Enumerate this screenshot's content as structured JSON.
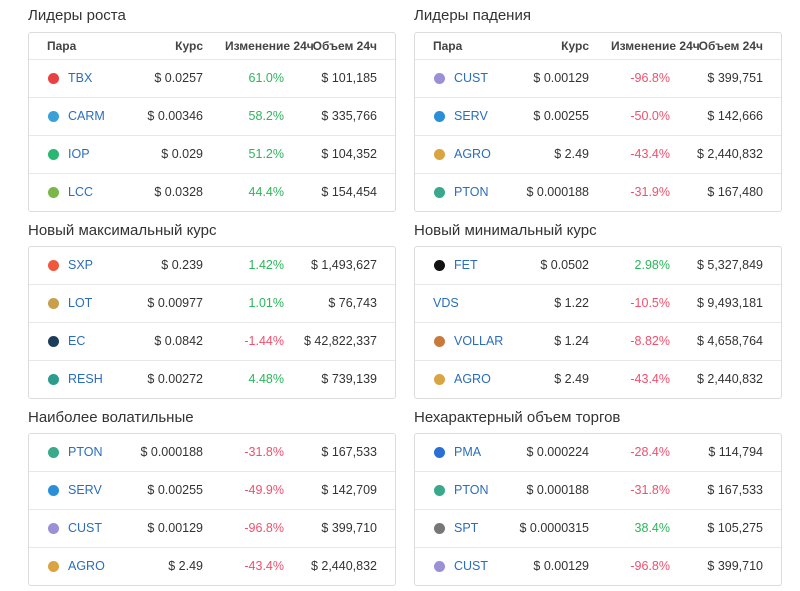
{
  "panels": [
    {
      "title": "Лидеры роста",
      "header": [
        "Пара",
        "Курс",
        "Изменение 24ч",
        "Объем 24ч"
      ],
      "rows": [
        [
          "TBX",
          "$ 0.0257",
          "61.0%",
          "$ 101,185"
        ],
        [
          "CARM",
          "$ 0.00346",
          "58.2%",
          "$ 335,766"
        ],
        [
          "IOP",
          "$ 0.029",
          "51.2%",
          "$ 104,352"
        ],
        [
          "LCC",
          "$ 0.0328",
          "44.4%",
          "$ 154,454"
        ]
      ]
    },
    {
      "title": "Лидеры падения",
      "header": [
        "Пара",
        "Курс",
        "Изменение 24ч",
        "Объем 24ч"
      ],
      "rows": [
        [
          "CUST",
          "$ 0.00129",
          "-96.8%",
          "$ 399,751"
        ],
        [
          "SERV",
          "$ 0.00255",
          "-50.0%",
          "$ 142,666"
        ],
        [
          "AGRO",
          "$ 2.49",
          "-43.4%",
          "$ 2,440,832"
        ],
        [
          "PTON",
          "$ 0.000188",
          "-31.9%",
          "$ 167,480"
        ]
      ]
    },
    {
      "title": "Новый максимальный курс",
      "rows": [
        [
          "SXP",
          "$ 0.239",
          "1.42%",
          "$ 1,493,627"
        ],
        [
          "LOT",
          "$ 0.00977",
          "1.01%",
          "$ 76,743"
        ],
        [
          "EC",
          "$ 0.0842",
          "-1.44%",
          "$ 42,822,337"
        ],
        [
          "RESH",
          "$ 0.00272",
          "4.48%",
          "$ 739,139"
        ]
      ]
    },
    {
      "title": "Новый минимальный курс",
      "rows": [
        [
          "FET",
          "$ 0.0502",
          "2.98%",
          "$ 5,327,849"
        ],
        [
          "VDS",
          "$ 1.22",
          "-10.5%",
          "$ 9,493,181"
        ],
        [
          "VOLLAR",
          "$ 1.24",
          "-8.82%",
          "$ 4,658,764"
        ],
        [
          "AGRO",
          "$ 2.49",
          "-43.4%",
          "$ 2,440,832"
        ]
      ]
    },
    {
      "title": "Наиболее волатильные",
      "rows": [
        [
          "PTON",
          "$ 0.000188",
          "-31.8%",
          "$ 167,533"
        ],
        [
          "SERV",
          "$ 0.00255",
          "-49.9%",
          "$ 142,709"
        ],
        [
          "CUST",
          "$ 0.00129",
          "-96.8%",
          "$ 399,710"
        ],
        [
          "AGRO",
          "$ 2.49",
          "-43.4%",
          "$ 2,440,832"
        ]
      ]
    },
    {
      "title": "Нехарактерный объем торгов",
      "rows": [
        [
          "PMA",
          "$ 0.000224",
          "-28.4%",
          "$ 114,794"
        ],
        [
          "PTON",
          "$ 0.000188",
          "-31.8%",
          "$ 167,533"
        ],
        [
          "SPT",
          "$ 0.0000315",
          "38.4%",
          "$ 105,275"
        ],
        [
          "CUST",
          "$ 0.00129",
          "-96.8%",
          "$ 399,710"
        ]
      ]
    }
  ]
}
